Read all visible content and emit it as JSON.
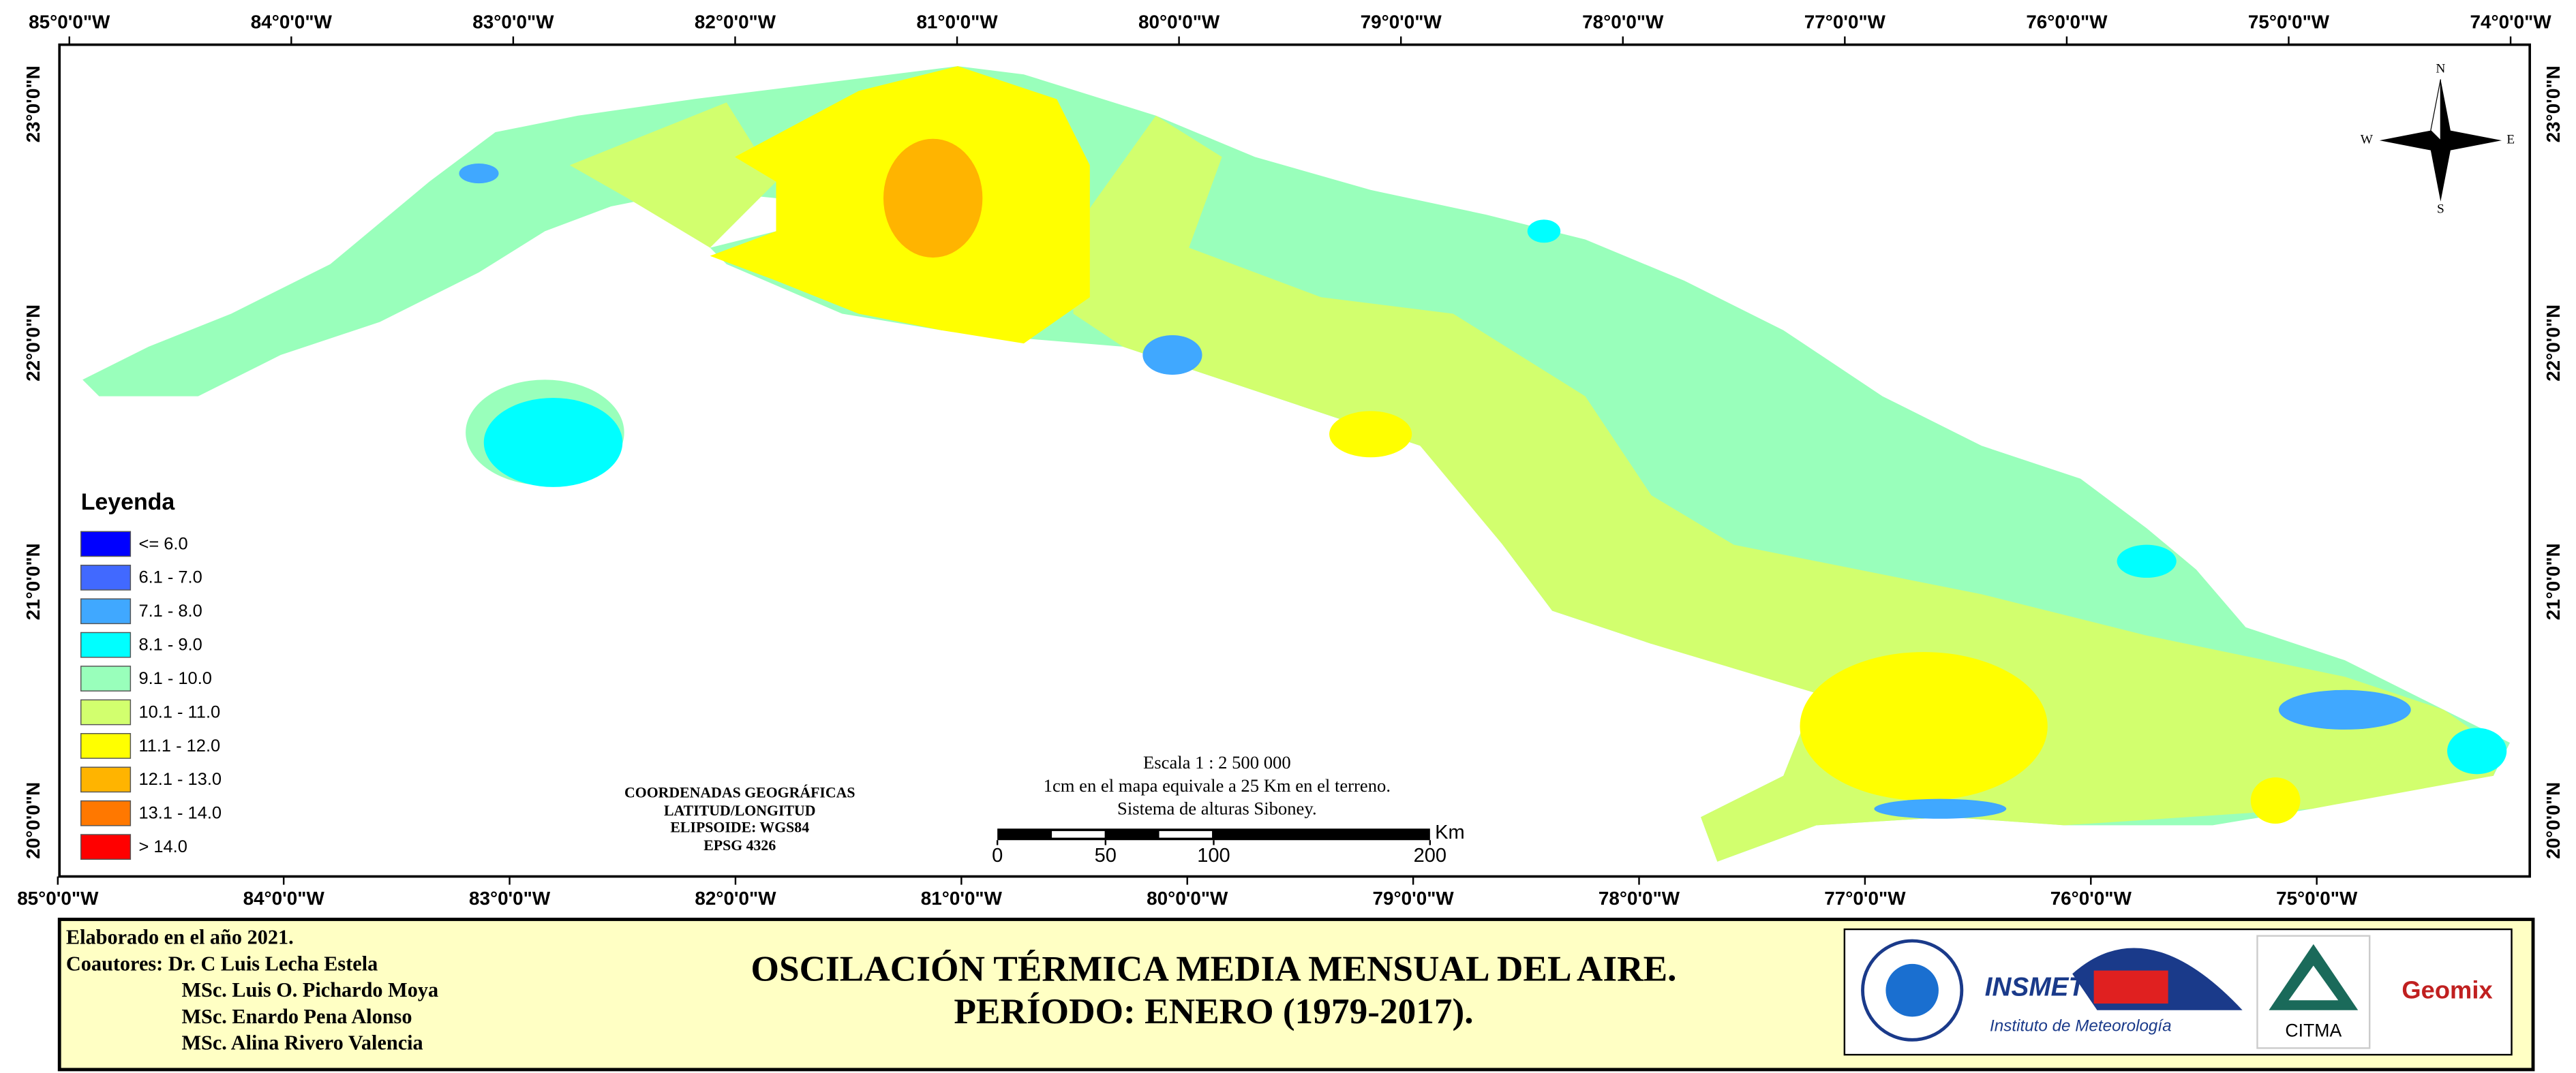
{
  "map": {
    "top_longitudes": [
      "85°0'0\"W",
      "84°0'0\"W",
      "83°0'0\"W",
      "82°0'0\"W",
      "81°0'0\"W",
      "80°0'0\"W",
      "79°0'0\"W",
      "78°0'0\"W",
      "77°0'0\"W",
      "76°0'0\"W",
      "75°0'0\"W",
      "74°0'0\"W"
    ],
    "bottom_longitudes": [
      "85°0'0\"W",
      "84°0'0\"W",
      "83°0'0\"W",
      "82°0'0\"W",
      "81°0'0\"W",
      "80°0'0\"W",
      "79°0'0\"W",
      "78°0'0\"W",
      "77°0'0\"W",
      "76°0'0\"W",
      "75°0'0\"W"
    ],
    "left_latitudes": [
      "23°0'0\"N",
      "22°0'0\"N",
      "21°0'0\"N",
      "20°0'0\"N"
    ],
    "right_latitudes": [
      "23°0'0\"N",
      "22°0'0\"N",
      "21°0'0\"N",
      "20°0'0\"N"
    ],
    "compass": {
      "north": "N",
      "east": "E",
      "south": "S",
      "west": "W"
    },
    "legend": {
      "title": "Leyenda",
      "items": [
        {
          "label": "<= 6.0",
          "color": "#0000ff"
        },
        {
          "label": "6.1 - 7.0",
          "color": "#4169ff"
        },
        {
          "label": "7.1 - 8.0",
          "color": "#40a8ff"
        },
        {
          "label": "8.1 - 9.0",
          "color": "#00ffff"
        },
        {
          "label": "9.1 - 10.0",
          "color": "#99ffbb"
        },
        {
          "label": "10.1 - 11.0",
          "color": "#d2ff6e"
        },
        {
          "label": "11.1 - 12.0",
          "color": "#ffff00"
        },
        {
          "label": "12.1 - 13.0",
          "color": "#ffb400"
        },
        {
          "label": "13.1 - 14.0",
          "color": "#ff7800"
        },
        {
          "label": "> 14.0",
          "color": "#ff0000"
        }
      ]
    },
    "scale": {
      "lines": [
        "Escala 1 : 2 500 000",
        "1cm en el mapa equivale a 25 Km en el terreno.",
        "Sistema de alturas Siboney."
      ],
      "unit": "Km",
      "ticks": [
        0,
        50,
        100,
        200
      ]
    },
    "coordinates_note": [
      "COORDENADAS GEOGRÁFICAS",
      "LATITUD/LONGITUD",
      "ELIPSOIDE: WGS84",
      "EPSG 4326"
    ]
  },
  "footer": {
    "credits": [
      "Elaborado en el año 2021.",
      "Coautores: Dr. C Luis Lecha Estela",
      "MSc. Luis O. Pichardo Moya",
      "MSc. Enardo Pena Alonso",
      "MSc. Alina Rivero Valencia"
    ],
    "title": [
      "OSCILACIÓN TÉRMICA MEDIA MENSUAL DEL AIRE.",
      "PERÍODO: ENERO (1979-2017)."
    ],
    "logos": {
      "insmet": "INSMET",
      "insmet_name": "Instituto de Meteorología",
      "citma": "CITMA",
      "geomix": "Geomix"
    }
  }
}
